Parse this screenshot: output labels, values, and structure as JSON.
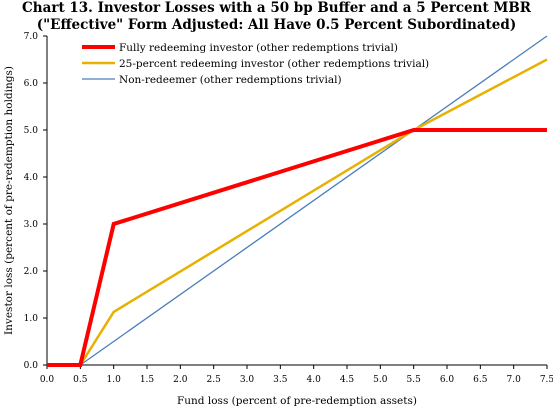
{
  "chart_data": {
    "type": "line",
    "title_line1": "Chart 13. Investor Losses with a 50 bp Buffer and a 5 Percent MBR",
    "title_line2": "(\"Effective\" Form Adjusted:  All Have 0.5 Percent Subordinated)",
    "xlabel": "Fund loss (percent of pre-redemption assets)",
    "ylabel": "Investor loss (percent of pre-redemption holdings)",
    "xlim": [
      0,
      7.5
    ],
    "ylim": [
      0,
      7.0
    ],
    "x_ticks": [
      "0.0",
      "0.5",
      "1.0",
      "1.5",
      "2.0",
      "2.5",
      "3.0",
      "3.5",
      "4.0",
      "4.5",
      "5.0",
      "5.5",
      "6.0",
      "6.5",
      "7.0",
      "7.5"
    ],
    "y_ticks": [
      "0.0",
      "1.0",
      "2.0",
      "3.0",
      "4.0",
      "5.0",
      "6.0",
      "7.0"
    ],
    "grid": false,
    "legend_position": "top-left",
    "series": [
      {
        "name": "Fully redeeming investor (other redemptions trivial)",
        "color": "#ff0000",
        "x": [
          0,
          0.5,
          1.0,
          5.5,
          7.5
        ],
        "y": [
          0,
          0,
          3.0,
          5.0,
          5.0
        ]
      },
      {
        "name": "25-percent redeeming investor (other redemptions trivial)",
        "color": "#e8b000",
        "x": [
          0,
          0.5,
          1.0,
          5.5,
          7.5
        ],
        "y": [
          0,
          0,
          1.13,
          5.0,
          6.5
        ]
      },
      {
        "name": "Non-redeemer (other redemptions trivial)",
        "color": "#4a7ebb",
        "x": [
          0,
          0.5,
          7.5
        ],
        "y": [
          0,
          0,
          7.0
        ]
      }
    ]
  }
}
